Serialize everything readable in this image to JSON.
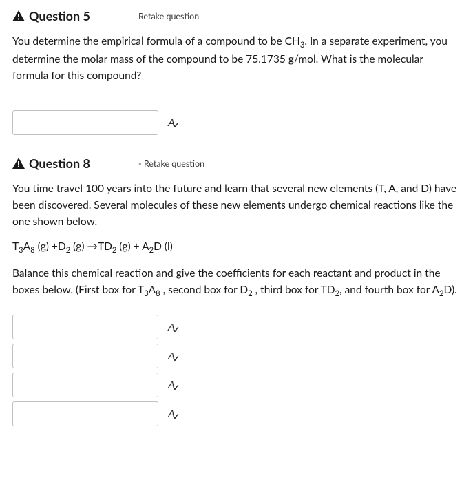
{
  "q5": {
    "title": "Question 5",
    "retake": "Retake question",
    "body_html": "You determine the empirical formula of a compound to be CH<sub>3</sub>. In a separate experiment, you determine the molar mass of the compound to be 75.1735 g/mol. What is the molecular formula for this compound?"
  },
  "q8": {
    "title": "Question 8",
    "retake": "Retake question",
    "body1_html": "You time travel 100 years into the future and learn that several new elements (T, A, and D) have been discovered. Several molecules of these new elements undergo chemical reactions like the one shown below.",
    "equation_html": "T<sub>3</sub>A<sub>8</sub> (g) +D<sub>2</sub> (g) →TD<sub>2</sub> (g) + A<sub>2</sub>D (l)",
    "body2_html": "Balance this chemical reaction and give the coefficients for each reactant and product in the boxes below.  (First box for T<sub>3</sub>A<sub>8</sub> , second box for D<sub>2</sub> , third box for TD<sub>2</sub>, and fourth box for A<sub>2</sub>D)."
  },
  "spell_icon": {
    "letter": "A",
    "check": "✓"
  }
}
